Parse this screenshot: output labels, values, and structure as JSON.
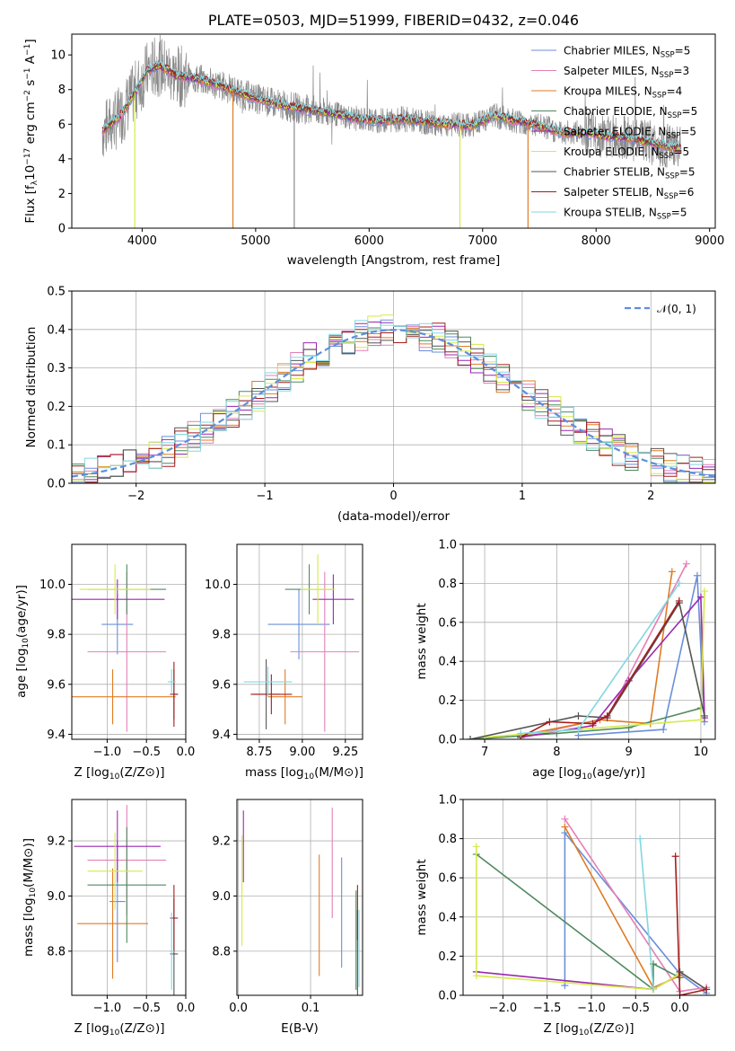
{
  "colors": {
    "chabrier_miles": "#6a8fd8",
    "salpeter_miles": "#e47fb6",
    "kroupa_miles": "#e07b25",
    "chabrier_elodie": "#4f8a5f",
    "salpeter_elodie": "#9b27b0",
    "kroupa_elodie": "#d6ea4a",
    "chabrier_stelib": "#555555",
    "salpeter_stelib": "#a51d1d",
    "kroupa_stelib": "#82d7e0",
    "data_grey": "#8a8a8a",
    "normal_curve": "#5b8fde"
  },
  "chart_data": [
    {
      "id": "spectrum",
      "type": "line",
      "title": "PLATE=0503, MJD=51999, FIBERID=0432, z=0.046",
      "xlabel": "wavelength [Angstrom, rest frame]",
      "ylabel": "Flux [f",
      "ylabel_tail": "10",
      "ylabel_unit": "erg cm",
      "xlim": [
        3380,
        9050
      ],
      "ylim": [
        0,
        11.2
      ],
      "xticks": [
        "4000",
        "5000",
        "6000",
        "7000",
        "8000",
        "9000"
      ],
      "yticks": [
        "0",
        "2",
        "4",
        "6",
        "8",
        "10"
      ],
      "legend_position": "top-right",
      "grid": false,
      "legend": [
        {
          "name": "Chabrier MILES",
          "nssp": "5",
          "color_key": "chabrier_miles"
        },
        {
          "name": "Salpeter MILES",
          "nssp": "3",
          "color_key": "salpeter_miles"
        },
        {
          "name": "Kroupa MILES",
          "nssp": "4",
          "color_key": "kroupa_miles"
        },
        {
          "name": "Chabrier ELODIE",
          "nssp": "5",
          "color_key": "chabrier_elodie"
        },
        {
          "name": "Salpeter ELODIE",
          "nssp": "5",
          "color_key": "salpeter_elodie"
        },
        {
          "name": "Kroupa ELODIE",
          "nssp": "5",
          "color_key": "kroupa_elodie"
        },
        {
          "name": "Chabrier STELIB",
          "nssp": "5",
          "color_key": "chabrier_stelib"
        },
        {
          "name": "Salpeter STELIB",
          "nssp": "6",
          "color_key": "salpeter_stelib"
        },
        {
          "name": "Kroupa STELIB",
          "nssp": "5",
          "color_key": "kroupa_stelib"
        }
      ],
      "continuum_model": [
        [
          3650,
          5.6
        ],
        [
          3800,
          6.4
        ],
        [
          3950,
          8.0
        ],
        [
          4050,
          9.1
        ],
        [
          4150,
          9.4
        ],
        [
          4300,
          8.8
        ],
        [
          4500,
          8.6
        ],
        [
          4700,
          8.2
        ],
        [
          4900,
          7.7
        ],
        [
          5100,
          7.3
        ],
        [
          5300,
          7.0
        ],
        [
          5500,
          6.8
        ],
        [
          5700,
          6.6
        ],
        [
          5900,
          6.3
        ],
        [
          6100,
          6.2
        ],
        [
          6300,
          6.3
        ],
        [
          6500,
          6.1
        ],
        [
          6700,
          6.0
        ],
        [
          6900,
          5.9
        ],
        [
          7100,
          6.5
        ],
        [
          7300,
          6.2
        ],
        [
          7500,
          5.9
        ],
        [
          7700,
          5.5
        ],
        [
          7900,
          5.5
        ],
        [
          8100,
          5.3
        ],
        [
          8300,
          5.2
        ],
        [
          8500,
          4.9
        ],
        [
          8750,
          4.6
        ]
      ],
      "noise_range": [
        3650,
        8750
      ],
      "dips": [
        {
          "x": 3935,
          "y": 0,
          "color_key": "kroupa_elodie"
        },
        {
          "x": 4800,
          "y": 0,
          "color_key": "kroupa_miles"
        },
        {
          "x": 5340,
          "y": 0,
          "color_key": "data_grey"
        },
        {
          "x": 6800,
          "y": 0,
          "color_key": "kroupa_elodie"
        },
        {
          "x": 7400,
          "y": 0,
          "color_key": "kroupa_miles"
        }
      ]
    },
    {
      "id": "residual_hist",
      "type": "line",
      "xlabel": "(data-model)/error",
      "ylabel": "Normed distribution",
      "xlim": [
        -2.5,
        2.5
      ],
      "ylim": [
        0,
        0.5
      ],
      "xticks": [
        "−2",
        "−1",
        "0",
        "1",
        "2"
      ],
      "yticks": [
        "0.0",
        "0.1",
        "0.2",
        "0.3",
        "0.4",
        "0.5"
      ],
      "grid": true,
      "legend_position": "top-right",
      "legend_label": "𝒩(0, 1)",
      "bins": 50
    },
    {
      "id": "age_vs_Z",
      "type": "scatter",
      "xlabel": "Z [log",
      "ylabel": "age  [log",
      "xlim": [
        -1.45,
        0.0
      ],
      "ylim": [
        9.38,
        10.16
      ],
      "xticks": [
        "−1.0",
        "−0.5",
        "0.0"
      ],
      "yticks": [
        "9.4",
        "9.6",
        "9.8",
        "10.0"
      ],
      "grid": true,
      "points": [
        {
          "color_key": "chabrier_miles",
          "x": -0.87,
          "y": 9.84,
          "dx": 0.2,
          "dy": 0.12
        },
        {
          "color_key": "salpeter_miles",
          "x": -0.75,
          "y": 9.73,
          "dx": 0.5,
          "dy": 0.32
        },
        {
          "color_key": "kroupa_miles",
          "x": -0.93,
          "y": 9.55,
          "dx": 0.8,
          "dy": 0.11
        },
        {
          "color_key": "chabrier_elodie",
          "x": -0.75,
          "y": 9.98,
          "dx": 0.5,
          "dy": 0.1
        },
        {
          "color_key": "salpeter_elodie",
          "x": -0.87,
          "y": 9.94,
          "dx": 0.6,
          "dy": 0.08
        },
        {
          "color_key": "kroupa_elodie",
          "x": -0.9,
          "y": 9.98,
          "dx": 0.45,
          "dy": 0.1
        },
        {
          "color_key": "chabrier_stelib",
          "x": -0.15,
          "y": 9.56,
          "dx": 0.05,
          "dy": 0.1
        },
        {
          "color_key": "salpeter_stelib",
          "x": -0.15,
          "y": 9.56,
          "dx": 0.05,
          "dy": 0.13
        },
        {
          "color_key": "kroupa_stelib",
          "x": -0.18,
          "y": 9.61,
          "dx": 0.05,
          "dy": 0.05
        }
      ]
    },
    {
      "id": "age_vs_mass",
      "type": "scatter",
      "xlabel": "mass [log",
      "xlim": [
        8.62,
        9.35
      ],
      "ylim": [
        9.38,
        10.16
      ],
      "xticks": [
        "8.75",
        "9.00",
        "9.25"
      ],
      "yticks": [
        "9.4",
        "9.6",
        "9.8",
        "10.0"
      ],
      "grid": true,
      "points": [
        {
          "color_key": "chabrier_miles",
          "x": 8.98,
          "y": 9.84,
          "dx": 0.18,
          "dy": 0.14
        },
        {
          "color_key": "salpeter_miles",
          "x": 9.13,
          "y": 9.73,
          "dx": 0.2,
          "dy": 0.32
        },
        {
          "color_key": "kroupa_miles",
          "x": 8.9,
          "y": 9.55,
          "dx": 0.1,
          "dy": 0.11
        },
        {
          "color_key": "chabrier_elodie",
          "x": 9.04,
          "y": 9.98,
          "dx": 0.14,
          "dy": 0.1
        },
        {
          "color_key": "salpeter_elodie",
          "x": 9.18,
          "y": 9.94,
          "dx": 0.12,
          "dy": 0.1
        },
        {
          "color_key": "kroupa_elodie",
          "x": 9.09,
          "y": 9.98,
          "dx": 0.1,
          "dy": 0.14
        },
        {
          "color_key": "chabrier_stelib",
          "x": 8.79,
          "y": 9.56,
          "dx": 0.08,
          "dy": 0.14
        },
        {
          "color_key": "salpeter_stelib",
          "x": 8.82,
          "y": 9.56,
          "dx": 0.12,
          "dy": 0.08
        },
        {
          "color_key": "kroupa_stelib",
          "x": 8.8,
          "y": 9.61,
          "dx": 0.14,
          "dy": 0.06
        }
      ]
    },
    {
      "id": "massweight_vs_age",
      "type": "line",
      "xlabel": "age  [log",
      "ylabel": "mass weight",
      "xlim": [
        6.7,
        10.2
      ],
      "ylim": [
        0,
        1.0
      ],
      "xticks": [
        "7",
        "8",
        "9",
        "10"
      ],
      "yticks": [
        "0.0",
        "0.2",
        "0.4",
        "0.6",
        "0.8",
        "1.0"
      ],
      "grid": true,
      "series": [
        {
          "color_key": "chabrier_miles",
          "points": [
            [
              8.3,
              0.02
            ],
            [
              9.48,
              0.05
            ],
            [
              9.95,
              0.84
            ],
            [
              10.05,
              0.09
            ]
          ]
        },
        {
          "color_key": "salpeter_miles",
          "points": [
            [
              7.5,
              0.01
            ],
            [
              8.7,
              0.11
            ],
            [
              9.8,
              0.9
            ]
          ]
        },
        {
          "color_key": "kroupa_miles",
          "points": [
            [
              7.5,
              0.02
            ],
            [
              8.6,
              0.1
            ],
            [
              9.3,
              0.08
            ],
            [
              9.6,
              0.86
            ]
          ]
        },
        {
          "color_key": "chabrier_elodie",
          "points": [
            [
              6.8,
              0.0
            ],
            [
              8.0,
              0.03
            ],
            [
              9.0,
              0.06
            ],
            [
              10.0,
              0.16
            ]
          ]
        },
        {
          "color_key": "salpeter_elodie",
          "points": [
            [
              7.5,
              0.01
            ],
            [
              8.5,
              0.07
            ],
            [
              9.0,
              0.3
            ],
            [
              10.0,
              0.73
            ],
            [
              10.05,
              0.11
            ]
          ]
        },
        {
          "color_key": "kroupa_elodie",
          "points": [
            [
              7.0,
              0.01
            ],
            [
              8.3,
              0.05
            ],
            [
              10.0,
              0.1
            ],
            [
              10.05,
              0.76
            ]
          ]
        },
        {
          "color_key": "chabrier_stelib",
          "points": [
            [
              6.8,
              0.0
            ],
            [
              8.3,
              0.12
            ],
            [
              8.7,
              0.11
            ],
            [
              9.7,
              0.7
            ],
            [
              10.05,
              0.12
            ]
          ]
        },
        {
          "color_key": "salpeter_stelib",
          "points": [
            [
              7.5,
              0.01
            ],
            [
              7.9,
              0.09
            ],
            [
              8.5,
              0.08
            ],
            [
              8.7,
              0.12
            ],
            [
              9.7,
              0.71
            ]
          ]
        },
        {
          "color_key": "kroupa_stelib",
          "points": [
            [
              7.5,
              0.03
            ],
            [
              8.3,
              0.05
            ],
            [
              9.7,
              0.8
            ]
          ]
        }
      ]
    },
    {
      "id": "mass_vs_Z",
      "type": "scatter",
      "xlabel": "Z [log",
      "ylabel": "mass [log",
      "xlim": [
        -1.45,
        0.0
      ],
      "ylim": [
        8.64,
        9.35
      ],
      "xticks": [
        "−1.0",
        "−0.5",
        "0.0"
      ],
      "yticks": [
        "8.8",
        "9.0",
        "9.2"
      ],
      "grid": true,
      "points": [
        {
          "color_key": "chabrier_miles",
          "x": -0.87,
          "y": 8.98,
          "dx": 0.1,
          "dy": 0.22
        },
        {
          "color_key": "salpeter_miles",
          "x": -0.75,
          "y": 9.13,
          "dx": 0.5,
          "dy": 0.2
        },
        {
          "color_key": "kroupa_miles",
          "x": -0.93,
          "y": 8.9,
          "dx": 0.45,
          "dy": 0.2
        },
        {
          "color_key": "chabrier_elodie",
          "x": -0.75,
          "y": 9.04,
          "dx": 0.5,
          "dy": 0.21
        },
        {
          "color_key": "salpeter_elodie",
          "x": -0.87,
          "y": 9.18,
          "dx": 0.55,
          "dy": 0.13
        },
        {
          "color_key": "kroupa_elodie",
          "x": -0.9,
          "y": 9.09,
          "dx": 0.35,
          "dy": 0.14
        },
        {
          "color_key": "chabrier_stelib",
          "x": -0.15,
          "y": 8.79,
          "dx": 0.05,
          "dy": 0.2
        },
        {
          "color_key": "salpeter_stelib",
          "x": -0.15,
          "y": 8.92,
          "dx": 0.05,
          "dy": 0.12
        },
        {
          "color_key": "kroupa_stelib",
          "x": -0.18,
          "y": 8.8,
          "dx": 0.03,
          "dy": 0.14
        }
      ]
    },
    {
      "id": "mass_vs_ebv",
      "type": "scatter",
      "xlabel": "E(B-V)",
      "xlim": [
        -0.002,
        0.172
      ],
      "ylim": [
        8.64,
        9.35
      ],
      "xticks": [
        "0.0",
        "0.1"
      ],
      "yticks": [
        "8.8",
        "9.0",
        "9.2"
      ],
      "grid": true,
      "points": [
        {
          "color_key": "chabrier_miles",
          "x": 0.143,
          "y": 8.94,
          "dy": 0.2
        },
        {
          "color_key": "salpeter_miles",
          "x": 0.13,
          "y": 9.12,
          "dy": 0.2
        },
        {
          "color_key": "kroupa_miles",
          "x": 0.112,
          "y": 8.93,
          "dy": 0.22
        },
        {
          "color_key": "chabrier_elodie",
          "x": 0.163,
          "y": 8.84,
          "dy": 0.18
        },
        {
          "color_key": "salpeter_elodie",
          "x": 0.007,
          "y": 9.18,
          "dy": 0.13
        },
        {
          "color_key": "kroupa_elodie",
          "x": 0.005,
          "y": 9.02,
          "dy": 0.2
        },
        {
          "color_key": "chabrier_stelib",
          "x": 0.165,
          "y": 8.75,
          "dy": 0.2
        },
        {
          "color_key": "salpeter_stelib",
          "x": 0.165,
          "y": 8.94,
          "dy": 0.1
        },
        {
          "color_key": "kroupa_stelib",
          "x": 0.167,
          "y": 8.81,
          "dy": 0.14
        }
      ]
    },
    {
      "id": "massweight_vs_Z",
      "type": "line",
      "xlabel": "Z [log",
      "ylabel": "mass weight",
      "xlim": [
        -2.45,
        0.4
      ],
      "ylim": [
        0,
        1.0
      ],
      "xticks": [
        "−2.0",
        "−1.5",
        "−1.0",
        "−0.5",
        "0.0"
      ],
      "yticks": [
        "0.0",
        "0.2",
        "0.4",
        "0.6",
        "0.8",
        "1.0"
      ],
      "grid": true,
      "series": [
        {
          "color_key": "chabrier_miles",
          "points": [
            [
              -1.3,
              0.05
            ],
            [
              -1.3,
              0.83
            ],
            [
              0.0,
              0.11
            ],
            [
              0.3,
              0.01
            ]
          ]
        },
        {
          "color_key": "salpeter_miles",
          "points": [
            [
              -1.3,
              0.9
            ],
            [
              0.0,
              0.02
            ],
            [
              0.3,
              0.04
            ]
          ]
        },
        {
          "color_key": "kroupa_miles",
          "points": [
            [
              -1.3,
              0.86
            ],
            [
              -0.3,
              0.04
            ],
            [
              0.0,
              0.1
            ]
          ]
        },
        {
          "color_key": "chabrier_elodie",
          "points": [
            [
              -2.3,
              0.72
            ],
            [
              -0.3,
              0.03
            ],
            [
              -0.3,
              0.16
            ],
            [
              0.0,
              0.09
            ]
          ]
        },
        {
          "color_key": "salpeter_elodie",
          "points": [
            [
              -2.3,
              0.12
            ],
            [
              -0.3,
              0.03
            ],
            [
              0.0,
              0.11
            ]
          ]
        },
        {
          "color_key": "kroupa_elodie",
          "points": [
            [
              -2.3,
              0.76
            ],
            [
              -2.3,
              0.1
            ],
            [
              -0.3,
              0.03
            ],
            [
              0.0,
              0.11
            ]
          ]
        },
        {
          "color_key": "chabrier_stelib",
          "points": [
            [
              -0.0,
              0.12
            ],
            [
              0.3,
              0.03
            ]
          ]
        },
        {
          "color_key": "salpeter_stelib",
          "points": [
            [
              -0.05,
              0.71
            ],
            [
              0.0,
              0.0
            ],
            [
              0.3,
              0.03
            ]
          ]
        },
        {
          "color_key": "kroupa_stelib",
          "points": [
            [
              -0.45,
              0.8
            ],
            [
              -0.3,
              0.04
            ]
          ]
        }
      ]
    }
  ]
}
